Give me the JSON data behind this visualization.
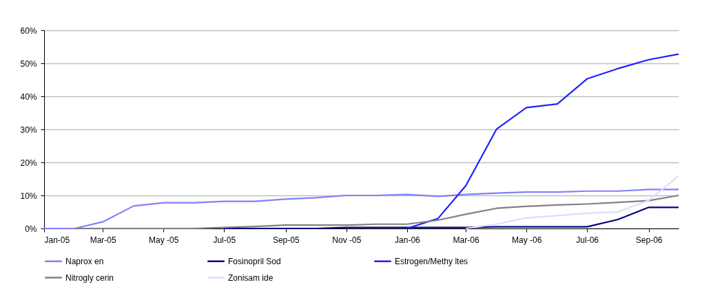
{
  "chart_data": {
    "type": "line",
    "x": [
      "2005-01",
      "2005-02",
      "2005-03",
      "2005-04",
      "2005-05",
      "2005-06",
      "2005-07",
      "2005-08",
      "2005-09",
      "2005-10",
      "2005-11",
      "2005-12",
      "2006-01",
      "2006-02",
      "2006-03",
      "2006-04",
      "2006-05",
      "2006-06",
      "2006-07",
      "2006-08",
      "2006-09",
      "2006-10"
    ],
    "series": [
      {
        "name": "Naprox en",
        "color": "#8080ff",
        "values": [
          0,
          0,
          2,
          6.8,
          7.8,
          7.8,
          8.2,
          8.2,
          8.9,
          9.3,
          10,
          10,
          10.3,
          9.7,
          10.3,
          10.7,
          11,
          11,
          11.3,
          11.3,
          11.8,
          11.8
        ]
      },
      {
        "name": "Fosinopril Sod",
        "color": "#000080",
        "values": [
          null,
          null,
          null,
          null,
          null,
          null,
          0,
          0,
          0,
          0,
          0.3,
          0.3,
          0.3,
          0.3,
          0.3,
          0.5,
          0.5,
          0.5,
          0.5,
          2.7,
          6.4,
          6.4
        ]
      },
      {
        "name": "Estrogen/Methy ltes",
        "color": "#1f1fff",
        "values": [
          null,
          null,
          null,
          null,
          null,
          null,
          null,
          null,
          null,
          null,
          null,
          null,
          0,
          3,
          12.9,
          30.1,
          36.6,
          37.7,
          45.3,
          48.4,
          51.1,
          52.8
        ]
      },
      {
        "name": "Nitrogly cerin",
        "color": "#808080",
        "values": [
          null,
          0,
          0,
          0,
          0,
          0,
          0.3,
          0.6,
          1,
          1,
          1,
          1.3,
          1.3,
          2.5,
          4.3,
          6.1,
          6.7,
          7.1,
          7.4,
          7.9,
          8.4,
          10
        ]
      },
      {
        "name": "Zonisam ide",
        "color": "#dcdcff",
        "values": [
          null,
          null,
          null,
          null,
          null,
          null,
          null,
          null,
          null,
          null,
          null,
          null,
          null,
          null,
          0,
          1.3,
          3.2,
          3.9,
          4.6,
          5,
          8.5,
          15.9
        ]
      }
    ],
    "xlim": [
      "2005-01",
      "2006-10"
    ],
    "xticks": [
      {
        "value": "2005-01",
        "label": "Jan-05"
      },
      {
        "value": "2005-03",
        "label": "Mar-05"
      },
      {
        "value": "2005-05",
        "label": "May -05"
      },
      {
        "value": "2005-07",
        "label": "Jul-05"
      },
      {
        "value": "2005-09",
        "label": "Sep-05"
      },
      {
        "value": "2005-11",
        "label": "Nov -05"
      },
      {
        "value": "2006-01",
        "label": "Jan-06"
      },
      {
        "value": "2006-03",
        "label": "Mar-06"
      },
      {
        "value": "2006-05",
        "label": "May -06"
      },
      {
        "value": "2006-07",
        "label": "Jul-06"
      },
      {
        "value": "2006-09",
        "label": "Sep-06"
      }
    ],
    "ylim": [
      0,
      60
    ],
    "yticks": [
      {
        "value": 0,
        "label": "0%"
      },
      {
        "value": 10,
        "label": "10%"
      },
      {
        "value": 20,
        "label": "20%"
      },
      {
        "value": 30,
        "label": "30%"
      },
      {
        "value": 40,
        "label": "40%"
      },
      {
        "value": 50,
        "label": "50%"
      },
      {
        "value": 60,
        "label": "60%"
      }
    ],
    "grid": "y",
    "legend": "bottom",
    "line_style": "solid",
    "marker": "none"
  }
}
